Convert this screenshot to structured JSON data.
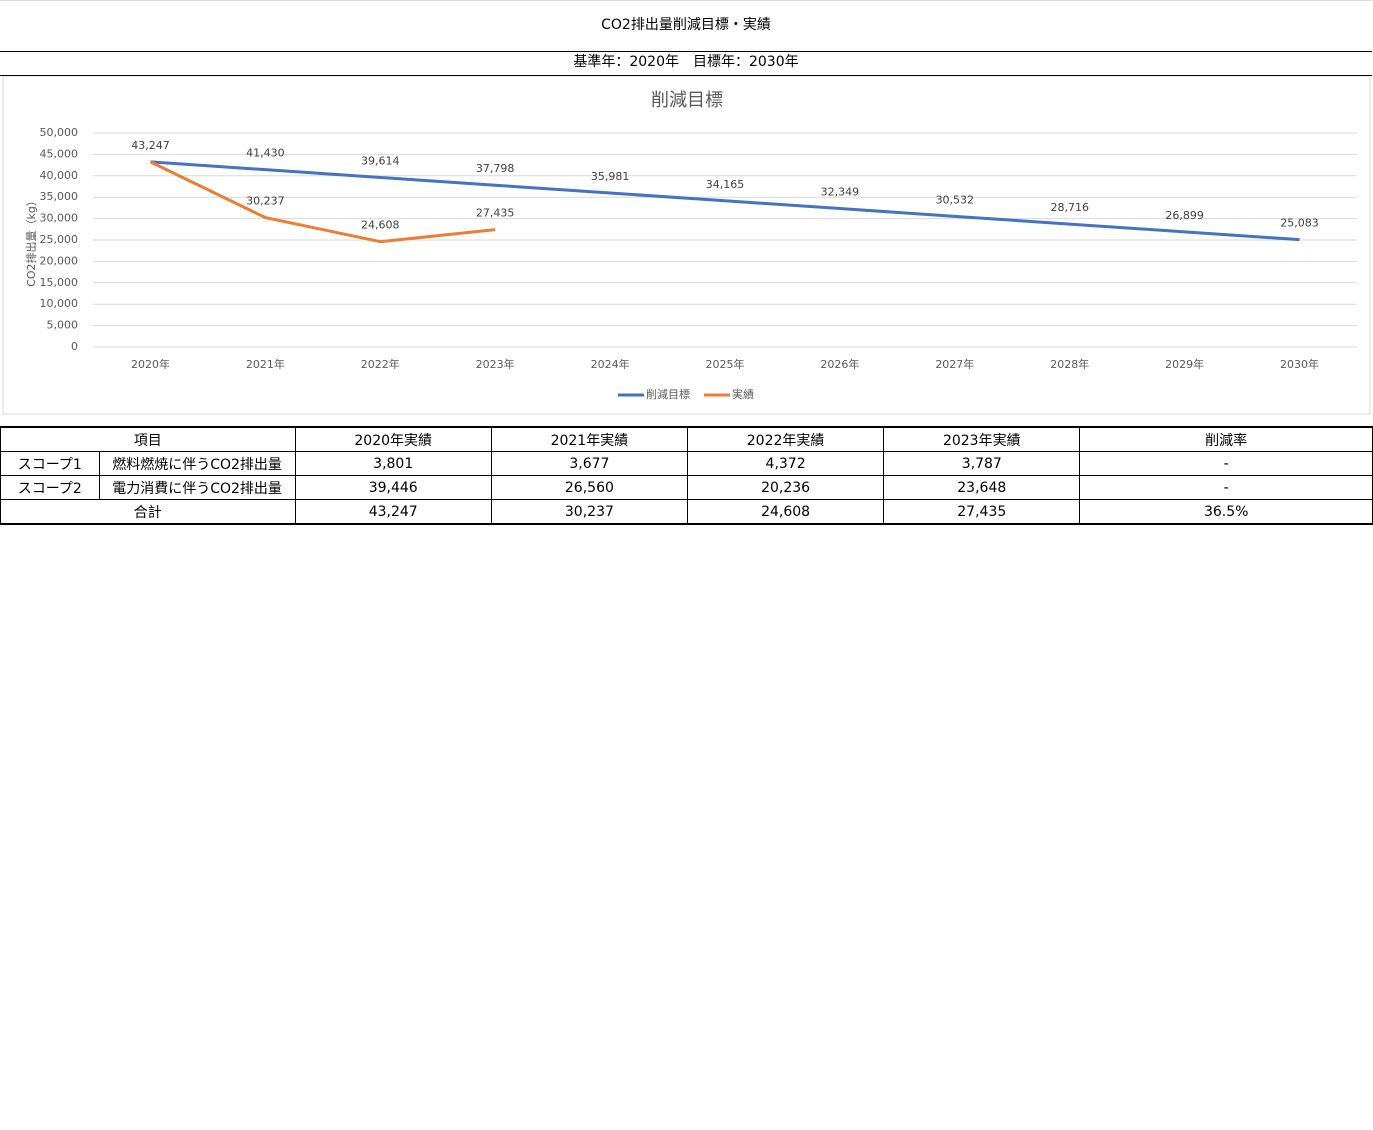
{
  "header": {
    "title": "CO2排出量削減目標・実績",
    "subtitle": "基準年：2020年　目標年：2030年"
  },
  "chart_data": {
    "type": "line",
    "title": "削減目標",
    "y_label": "CO2排出量（kg）",
    "categories": [
      "2020年",
      "2021年",
      "2022年",
      "2023年",
      "2024年",
      "2025年",
      "2026年",
      "2027年",
      "2028年",
      "2029年",
      "2030年"
    ],
    "series": [
      {
        "name": "削減目標",
        "color": "#4472c4",
        "values": [
          43247,
          41430,
          39614,
          37798,
          35981,
          34165,
          32349,
          30532,
          28716,
          26899,
          25083
        ],
        "value_labels": [
          "43,247",
          "41,430",
          "39,614",
          "37,798",
          "35,981",
          "34,165",
          "32,349",
          "30,532",
          "28,716",
          "26,899",
          "25,083"
        ]
      },
      {
        "name": "実績",
        "color": "#ed7d31",
        "values": [
          43247,
          30237,
          24608,
          27435,
          null,
          null,
          null,
          null,
          null,
          null,
          null
        ],
        "value_labels": [
          null,
          "30,237",
          "24,608",
          "27,435",
          null,
          null,
          null,
          null,
          null,
          null,
          null
        ]
      }
    ],
    "ylim": [
      0,
      50000
    ],
    "yticks": [
      0,
      {
        "value": 5000,
        "label": "5,000"
      },
      {
        "value": 10000,
        "label": "10,000"
      },
      {
        "value": 15000,
        "label": "15,000"
      },
      {
        "value": 20000,
        "label": "20,000"
      },
      {
        "value": 25000,
        "label": "25,000"
      },
      {
        "value": 30000,
        "label": "30,000"
      },
      {
        "value": 35000,
        "label": "35,000"
      },
      {
        "value": 40000,
        "label": "40,000"
      },
      {
        "value": 45000,
        "label": "45,000"
      },
      {
        "value": 50000,
        "label": "50,000"
      }
    ],
    "grid": true,
    "legend": "bottom"
  },
  "table": {
    "header": [
      "項目",
      "2020年実績",
      "2021年実績",
      "2022年実績",
      "2023年実績",
      "削減率"
    ],
    "rows": [
      [
        "スコープ1",
        "燃料燃焼に伴うCO2排出量",
        "3,801",
        "3,677",
        "4,372",
        "3,787",
        "-"
      ],
      [
        "スコープ2",
        "電力消費に伴うCO2排出量",
        "39,446",
        "26,560",
        "20,236",
        "23,648",
        "-"
      ]
    ],
    "total": [
      "合計",
      "43,247",
      "30,237",
      "24,608",
      "27,435",
      "36.5%"
    ]
  }
}
